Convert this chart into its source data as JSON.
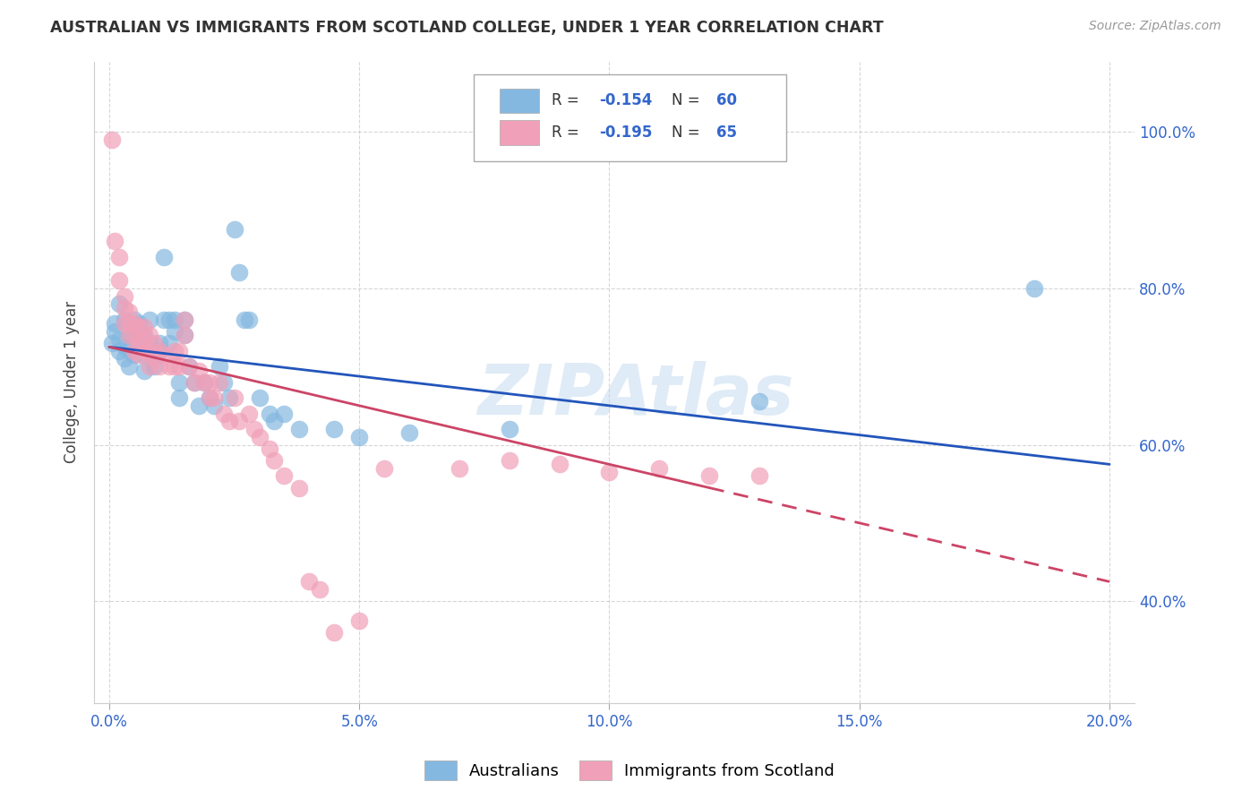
{
  "title": "AUSTRALIAN VS IMMIGRANTS FROM SCOTLAND COLLEGE, UNDER 1 YEAR CORRELATION CHART",
  "source": "Source: ZipAtlas.com",
  "ylabel": "College, Under 1 year",
  "x_ticks": [
    0.0,
    0.05,
    0.1,
    0.15,
    0.2
  ],
  "x_tick_labels": [
    "0.0%",
    "5.0%",
    "10.0%",
    "15.0%",
    "20.0%"
  ],
  "y_ticks": [
    0.4,
    0.6,
    0.8,
    1.0
  ],
  "y_tick_labels": [
    "40.0%",
    "60.0%",
    "80.0%",
    "100.0%"
  ],
  "xlim": [
    -0.003,
    0.205
  ],
  "ylim": [
    0.27,
    1.09
  ],
  "watermark": "ZIPAtlas",
  "legend_R_blue": "-0.154",
  "legend_N_blue": "60",
  "legend_R_pink": "-0.195",
  "legend_N_pink": "65",
  "blue_color": "#85b8e0",
  "pink_color": "#f0a0b8",
  "trendline_blue": "#2255bb",
  "trendline_pink": "#cc4466",
  "blue_scatter": [
    [
      0.0005,
      0.73
    ],
    [
      0.001,
      0.745
    ],
    [
      0.001,
      0.755
    ],
    [
      0.002,
      0.78
    ],
    [
      0.002,
      0.72
    ],
    [
      0.002,
      0.735
    ],
    [
      0.003,
      0.76
    ],
    [
      0.003,
      0.725
    ],
    [
      0.003,
      0.71
    ],
    [
      0.004,
      0.74
    ],
    [
      0.004,
      0.72
    ],
    [
      0.004,
      0.7
    ],
    [
      0.005,
      0.76
    ],
    [
      0.005,
      0.74
    ],
    [
      0.005,
      0.715
    ],
    [
      0.006,
      0.755
    ],
    [
      0.006,
      0.73
    ],
    [
      0.007,
      0.74
    ],
    [
      0.007,
      0.715
    ],
    [
      0.007,
      0.695
    ],
    [
      0.008,
      0.76
    ],
    [
      0.008,
      0.73
    ],
    [
      0.009,
      0.72
    ],
    [
      0.009,
      0.7
    ],
    [
      0.01,
      0.73
    ],
    [
      0.01,
      0.72
    ],
    [
      0.011,
      0.84
    ],
    [
      0.011,
      0.76
    ],
    [
      0.012,
      0.76
    ],
    [
      0.012,
      0.73
    ],
    [
      0.013,
      0.76
    ],
    [
      0.013,
      0.745
    ],
    [
      0.014,
      0.68
    ],
    [
      0.014,
      0.66
    ],
    [
      0.015,
      0.76
    ],
    [
      0.015,
      0.74
    ],
    [
      0.016,
      0.7
    ],
    [
      0.017,
      0.68
    ],
    [
      0.018,
      0.65
    ],
    [
      0.019,
      0.68
    ],
    [
      0.02,
      0.66
    ],
    [
      0.021,
      0.65
    ],
    [
      0.022,
      0.7
    ],
    [
      0.023,
      0.68
    ],
    [
      0.024,
      0.66
    ],
    [
      0.025,
      0.875
    ],
    [
      0.026,
      0.82
    ],
    [
      0.027,
      0.76
    ],
    [
      0.028,
      0.76
    ],
    [
      0.03,
      0.66
    ],
    [
      0.032,
      0.64
    ],
    [
      0.033,
      0.63
    ],
    [
      0.035,
      0.64
    ],
    [
      0.038,
      0.62
    ],
    [
      0.045,
      0.62
    ],
    [
      0.05,
      0.61
    ],
    [
      0.06,
      0.615
    ],
    [
      0.08,
      0.62
    ],
    [
      0.13,
      0.655
    ],
    [
      0.185,
      0.8
    ]
  ],
  "pink_scatter": [
    [
      0.0005,
      0.99
    ],
    [
      0.001,
      0.86
    ],
    [
      0.002,
      0.84
    ],
    [
      0.002,
      0.81
    ],
    [
      0.003,
      0.79
    ],
    [
      0.003,
      0.775
    ],
    [
      0.003,
      0.755
    ],
    [
      0.004,
      0.77
    ],
    [
      0.004,
      0.755
    ],
    [
      0.004,
      0.74
    ],
    [
      0.005,
      0.755
    ],
    [
      0.005,
      0.74
    ],
    [
      0.005,
      0.72
    ],
    [
      0.006,
      0.75
    ],
    [
      0.006,
      0.73
    ],
    [
      0.006,
      0.715
    ],
    [
      0.007,
      0.75
    ],
    [
      0.007,
      0.735
    ],
    [
      0.007,
      0.72
    ],
    [
      0.008,
      0.74
    ],
    [
      0.008,
      0.72
    ],
    [
      0.008,
      0.7
    ],
    [
      0.009,
      0.73
    ],
    [
      0.009,
      0.71
    ],
    [
      0.01,
      0.72
    ],
    [
      0.01,
      0.7
    ],
    [
      0.011,
      0.715
    ],
    [
      0.012,
      0.7
    ],
    [
      0.013,
      0.72
    ],
    [
      0.013,
      0.7
    ],
    [
      0.014,
      0.72
    ],
    [
      0.014,
      0.7
    ],
    [
      0.015,
      0.76
    ],
    [
      0.015,
      0.74
    ],
    [
      0.016,
      0.7
    ],
    [
      0.017,
      0.68
    ],
    [
      0.018,
      0.695
    ],
    [
      0.019,
      0.68
    ],
    [
      0.02,
      0.68
    ],
    [
      0.02,
      0.66
    ],
    [
      0.021,
      0.66
    ],
    [
      0.022,
      0.68
    ],
    [
      0.023,
      0.64
    ],
    [
      0.024,
      0.63
    ],
    [
      0.025,
      0.66
    ],
    [
      0.026,
      0.63
    ],
    [
      0.028,
      0.64
    ],
    [
      0.029,
      0.62
    ],
    [
      0.03,
      0.61
    ],
    [
      0.032,
      0.595
    ],
    [
      0.033,
      0.58
    ],
    [
      0.035,
      0.56
    ],
    [
      0.038,
      0.545
    ],
    [
      0.04,
      0.425
    ],
    [
      0.042,
      0.415
    ],
    [
      0.045,
      0.36
    ],
    [
      0.05,
      0.375
    ],
    [
      0.055,
      0.57
    ],
    [
      0.07,
      0.57
    ],
    [
      0.08,
      0.58
    ],
    [
      0.09,
      0.575
    ],
    [
      0.1,
      0.565
    ],
    [
      0.11,
      0.57
    ],
    [
      0.12,
      0.56
    ],
    [
      0.13,
      0.56
    ]
  ],
  "grid_color": "#cccccc",
  "background_color": "#ffffff"
}
